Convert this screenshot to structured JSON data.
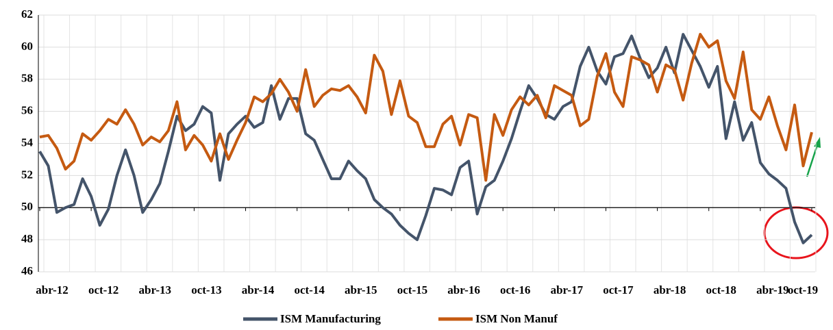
{
  "chart_data": {
    "type": "line",
    "categories": [
      "abr-12",
      null,
      null,
      null,
      null,
      null,
      "oct-12",
      null,
      null,
      null,
      null,
      null,
      "abr-13",
      null,
      null,
      null,
      null,
      null,
      "oct-13",
      null,
      null,
      null,
      null,
      null,
      "abr-14",
      null,
      null,
      null,
      null,
      null,
      "oct-14",
      null,
      null,
      null,
      null,
      null,
      "abr-15",
      null,
      null,
      null,
      null,
      null,
      "oct-15",
      null,
      null,
      null,
      null,
      null,
      "abr-16",
      null,
      null,
      null,
      null,
      null,
      "oct-16",
      null,
      null,
      null,
      null,
      null,
      "abr-17",
      null,
      null,
      null,
      null,
      null,
      "oct-17",
      null,
      null,
      null,
      null,
      null,
      "abr-18",
      null,
      null,
      null,
      null,
      null,
      "oct-18",
      null,
      null,
      null,
      null,
      null,
      "abr-19",
      null,
      null,
      null,
      null,
      null,
      "oct-19"
    ],
    "series": [
      {
        "name": "ISM Manufacturing",
        "color": "#44546a",
        "values": [
          53.5,
          52.6,
          49.7,
          50.0,
          50.2,
          51.8,
          50.7,
          48.9,
          49.9,
          52.0,
          53.6,
          52.0,
          49.7,
          50.5,
          51.5,
          53.5,
          55.7,
          54.8,
          55.2,
          56.3,
          55.9,
          51.7,
          54.6,
          55.2,
          55.7,
          55.0,
          55.3,
          57.6,
          55.5,
          56.8,
          56.8,
          54.6,
          54.2,
          53.0,
          51.8,
          51.8,
          52.9,
          52.3,
          51.8,
          50.5,
          50.0,
          49.6,
          48.9,
          48.4,
          48.0,
          49.5,
          51.2,
          51.1,
          50.8,
          52.5,
          52.9,
          49.6,
          51.3,
          51.7,
          52.9,
          54.3,
          56.0,
          57.6,
          56.8,
          55.8,
          55.5,
          56.3,
          56.6,
          58.8,
          60.0,
          58.5,
          57.7,
          59.4,
          59.6,
          60.7,
          59.3,
          58.1,
          58.7,
          60.0,
          58.4,
          60.8,
          59.8,
          58.8,
          57.5,
          58.8,
          54.3,
          56.6,
          54.2,
          55.3,
          52.8,
          52.1,
          51.7,
          51.2,
          49.1,
          47.8,
          48.3
        ]
      },
      {
        "name": "ISM Non Manuf",
        "color": "#c55a11",
        "values": [
          54.4,
          54.5,
          53.7,
          52.4,
          52.9,
          54.6,
          54.2,
          54.8,
          55.5,
          55.2,
          56.1,
          55.2,
          53.9,
          54.4,
          54.1,
          54.8,
          56.6,
          53.6,
          54.5,
          53.9,
          52.9,
          54.6,
          53.0,
          54.2,
          55.3,
          56.9,
          56.6,
          57.1,
          58.0,
          57.2,
          56.0,
          58.6,
          56.3,
          57.0,
          57.4,
          57.3,
          57.6,
          56.9,
          55.9,
          59.5,
          58.5,
          55.8,
          57.9,
          55.7,
          55.3,
          53.8,
          53.8,
          55.2,
          55.7,
          53.9,
          55.8,
          55.6,
          51.7,
          55.8,
          54.5,
          56.1,
          56.9,
          56.4,
          57.0,
          55.6,
          57.6,
          57.3,
          57.0,
          55.1,
          55.5,
          58.2,
          59.6,
          57.2,
          56.3,
          59.4,
          59.2,
          58.9,
          57.2,
          58.9,
          58.6,
          56.7,
          59.0,
          60.8,
          60.0,
          60.4,
          57.9,
          56.8,
          59.7,
          56.1,
          55.5,
          56.9,
          55.1,
          53.6,
          56.4,
          52.6,
          54.7
        ]
      }
    ],
    "ylim": [
      46,
      62
    ],
    "yticks": [
      46,
      48,
      50,
      52,
      54,
      56,
      58,
      60,
      62
    ],
    "x_axis_at": 50,
    "grid": true,
    "legend": "bottom"
  }
}
